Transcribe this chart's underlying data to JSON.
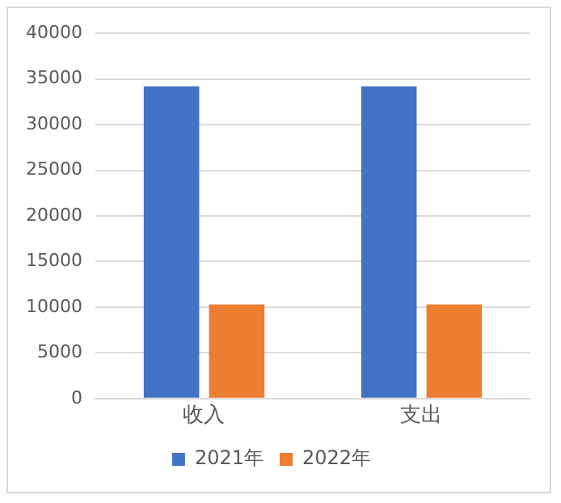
{
  "chart_data": {
    "type": "bar",
    "categories": [
      "收入",
      "支出"
    ],
    "series": [
      {
        "name": "2021年",
        "color": "#4472c4",
        "values": [
          34200,
          34200
        ]
      },
      {
        "name": "2022年",
        "color": "#ed7d31",
        "values": [
          10300,
          10300
        ]
      }
    ],
    "ylim": [
      0,
      40000
    ],
    "yticks": [
      0,
      5000,
      10000,
      15000,
      20000,
      25000,
      30000,
      35000,
      40000
    ],
    "grid": "y",
    "legend": "bottom"
  }
}
